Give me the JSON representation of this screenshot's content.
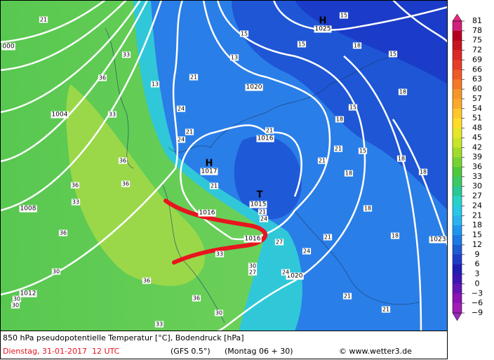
{
  "map": {
    "isobar_labels": [
      "000",
      "1004",
      "1008",
      "1012",
      "1016",
      "1016",
      "1016",
      "1017",
      "1015",
      "1020",
      "1020",
      "1023",
      "1025"
    ],
    "pressure_centers": [
      "H",
      "H",
      "T"
    ],
    "temperature_labels": [
      "21",
      "33",
      "36",
      "33",
      "36",
      "36",
      "36",
      "33",
      "36",
      "30",
      "30",
      "30",
      "36",
      "36",
      "30",
      "33",
      "33",
      "30",
      "27",
      "27",
      "24",
      "21",
      "24",
      "21",
      "24",
      "21",
      "21",
      "21",
      "21",
      "18",
      "18",
      "18",
      "15",
      "15",
      "18",
      "18",
      "15",
      "15",
      "18",
      "18",
      "21",
      "24",
      "15",
      "13",
      "13",
      "18",
      "15",
      "21",
      "21",
      "21",
      "24"
    ]
  },
  "colorbar": {
    "labels": [
      "81",
      "78",
      "75",
      "72",
      "69",
      "66",
      "63",
      "60",
      "57",
      "54",
      "51",
      "48",
      "45",
      "42",
      "39",
      "36",
      "33",
      "30",
      "27",
      "24",
      "21",
      "18",
      "15",
      "12",
      "9",
      "6",
      "3",
      "0",
      "−3",
      "−6",
      "−9"
    ],
    "colors": [
      "#d0207a",
      "#b4001e",
      "#c8141e",
      "#dc2828",
      "#e63c28",
      "#f05a28",
      "#f57828",
      "#f59628",
      "#faaa28",
      "#ffc828",
      "#ffdc28",
      "#e6e628",
      "#c8e628",
      "#a0dc28",
      "#78d232",
      "#50c83c",
      "#3cc864",
      "#28c896",
      "#28d2c8",
      "#28c8e6",
      "#28b4f0",
      "#1e96f0",
      "#1e78e6",
      "#1e5ad2",
      "#1e3cc8",
      "#1e1eb4",
      "#3c14b4",
      "#6414b4",
      "#8c14b4",
      "#a01eb4"
    ]
  },
  "footer": {
    "title": "850 hPa pseudopotentielle Temperatur [°C], Bodendruck [hPa]",
    "date": "Dienstag, 31-01-2017  12 UTC",
    "model": "(GFS 0.5°)",
    "run": "(Montag 06 + 30)",
    "credit": "© www.wetter3.de"
  }
}
